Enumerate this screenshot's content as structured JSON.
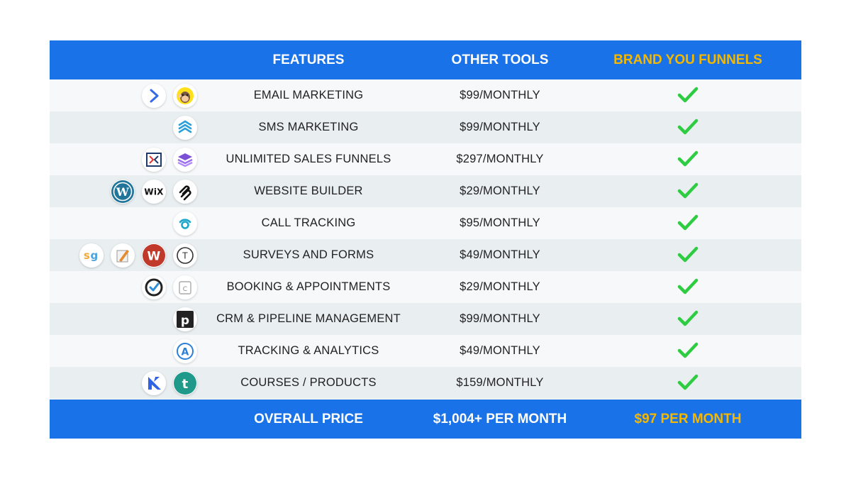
{
  "header": {
    "features": "FEATURES",
    "other_tools": "OTHER TOOLS",
    "brand": "BRAND YOU FUNNELS"
  },
  "rows": [
    {
      "feature": "EMAIL MARKETING",
      "price": "$99/MONTHLY",
      "icons": [
        "activecampaign-icon",
        "mailchimp-icon"
      ]
    },
    {
      "feature": "SMS MARKETING",
      "price": "$99/MONTHLY",
      "icons": [
        "stacked-chevrons-icon"
      ]
    },
    {
      "feature": "UNLIMITED SALES FUNNELS",
      "price": "$297/MONTHLY",
      "icons": [
        "clickfunnels-icon",
        "layers-icon"
      ]
    },
    {
      "feature": "WEBSITE BUILDER",
      "price": "$29/MONTHLY",
      "icons": [
        "wordpress-icon",
        "wix-icon",
        "squarespace-icon"
      ]
    },
    {
      "feature": "CALL TRACKING",
      "price": "$95/MONTHLY",
      "icons": [
        "callrail-icon"
      ]
    },
    {
      "feature": "SURVEYS AND FORMS",
      "price": "$49/MONTHLY",
      "icons": [
        "surveygizmo-icon",
        "pencil-paper-icon",
        "wufoo-icon",
        "typeform-icon"
      ]
    },
    {
      "feature": "BOOKING & APPOINTMENTS",
      "price": "$29/MONTHLY",
      "icons": [
        "acuity-icon",
        "calendly-icon"
      ]
    },
    {
      "feature": "CRM & PIPELINE MANAGEMENT",
      "price": "$99/MONTHLY",
      "icons": [
        "pipedrive-icon"
      ]
    },
    {
      "feature": "TRACKING & ANALYTICS",
      "price": "$49/MONTHLY",
      "icons": [
        "analytics-icon"
      ]
    },
    {
      "feature": "COURSES / PRODUCTS",
      "price": "$159/MONTHLY",
      "icons": [
        "kajabi-icon",
        "teachable-icon"
      ]
    }
  ],
  "footer": {
    "label": "OVERALL PRICE",
    "other_total": "$1,004+ PER MONTH",
    "brand_total": "$97 PER MONTH"
  },
  "colors": {
    "header_blue": "#1a72e8",
    "brand_gold": "#f5b800",
    "check_green": "#2ecc40"
  }
}
